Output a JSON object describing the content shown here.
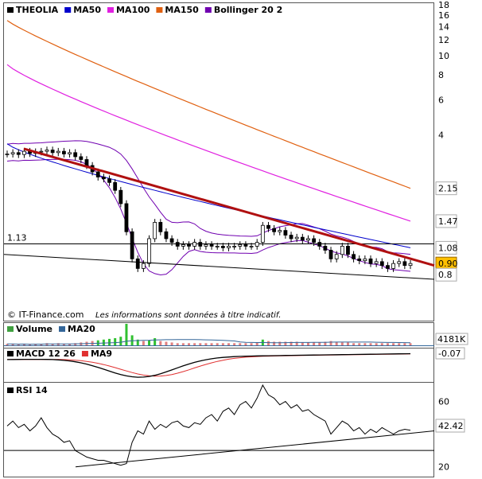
{
  "chart_data": [
    {
      "type": "candlestick",
      "panel": "price",
      "symbol": "THEOLIA",
      "scale": "log",
      "ylim": [
        0.5,
        18
      ],
      "y_ticks": [
        18,
        16,
        14,
        12,
        10,
        8,
        6,
        4
      ],
      "legend": [
        {
          "name": "THEOLIA",
          "color": "#000000"
        },
        {
          "name": "MA50",
          "color": "#0000cc"
        },
        {
          "name": "MA100",
          "color": "#e020e0"
        },
        {
          "name": "MA150",
          "color": "#e06010"
        },
        {
          "name": "Bollinger 20 2",
          "color": "#7000b0"
        }
      ],
      "value_tags": [
        {
          "label": "2.15",
          "color": "#e06010"
        },
        {
          "label": "1.47",
          "color": "#e020e0"
        },
        {
          "label": "1.08",
          "color": "#0000cc"
        },
        {
          "label": "0.90",
          "color": "#000000",
          "bg": "#ffc000"
        },
        {
          "label": "0.8",
          "color": "#000000"
        }
      ],
      "level_label": "1.13",
      "closes": [
        3.2,
        3.25,
        3.18,
        3.3,
        3.22,
        3.28,
        3.3,
        3.35,
        3.25,
        3.3,
        3.2,
        3.25,
        3.1,
        3.0,
        2.8,
        2.6,
        2.45,
        2.4,
        2.3,
        2.1,
        1.8,
        1.3,
        0.95,
        0.85,
        0.9,
        1.2,
        1.45,
        1.3,
        1.2,
        1.15,
        1.1,
        1.12,
        1.1,
        1.15,
        1.1,
        1.12,
        1.1,
        1.1,
        1.08,
        1.1,
        1.1,
        1.12,
        1.1,
        1.1,
        1.15,
        1.4,
        1.35,
        1.3,
        1.32,
        1.25,
        1.2,
        1.22,
        1.18,
        1.2,
        1.15,
        1.1,
        1.05,
        0.95,
        1.0,
        1.1,
        1.0,
        0.95,
        0.93,
        0.95,
        0.9,
        0.92,
        0.88,
        0.85,
        0.9,
        0.92,
        0.88,
        0.9
      ],
      "footer": "© IT-Finance.com",
      "disclaimer": "Les informations sont données à titre indicatif."
    },
    {
      "type": "bar",
      "panel": "volume",
      "legend": [
        {
          "name": "Volume",
          "color": "#40a040"
        },
        {
          "name": "MA20",
          "color": "#336699"
        }
      ],
      "value_tag": "4181K",
      "values": [
        2,
        2,
        1,
        2,
        1,
        2,
        2,
        3,
        2,
        3,
        2,
        2,
        3,
        4,
        5,
        6,
        7,
        8,
        9,
        10,
        12,
        30,
        14,
        8,
        6,
        7,
        10,
        6,
        5,
        4,
        3,
        3,
        3,
        3,
        3,
        3,
        3,
        3,
        3,
        3,
        3,
        3,
        3,
        3,
        4,
        8,
        6,
        5,
        5,
        5,
        5,
        5,
        4,
        4,
        4,
        4,
        5,
        6,
        5,
        4,
        4,
        3,
        3,
        3,
        3,
        3,
        3,
        3,
        3,
        3,
        3,
        3
      ]
    },
    {
      "type": "line",
      "panel": "macd",
      "legend": [
        {
          "name": "MACD 12 26",
          "color": "#000000"
        },
        {
          "name": "MA9",
          "color": "#e03030"
        }
      ],
      "value_tag": "-0.07"
    },
    {
      "type": "line",
      "panel": "rsi",
      "legend": [
        {
          "name": "RSI 14",
          "color": "#000000"
        }
      ],
      "y_ticks": [
        60,
        20
      ],
      "value_tag": "42.42",
      "values": [
        45,
        48,
        44,
        46,
        42,
        45,
        50,
        44,
        40,
        38,
        35,
        36,
        30,
        28,
        26,
        25,
        24,
        24,
        23,
        22,
        21,
        22,
        35,
        42,
        40,
        48,
        43,
        46,
        44,
        47,
        48,
        45,
        44,
        47,
        46,
        50,
        52,
        48,
        54,
        56,
        52,
        58,
        60,
        56,
        62,
        70,
        64,
        62,
        58,
        60,
        56,
        58,
        54,
        55,
        52,
        50,
        48,
        40,
        44,
        48,
        46,
        42,
        44,
        40,
        43,
        41,
        44,
        42,
        40,
        42,
        43,
        42.42
      ]
    }
  ]
}
